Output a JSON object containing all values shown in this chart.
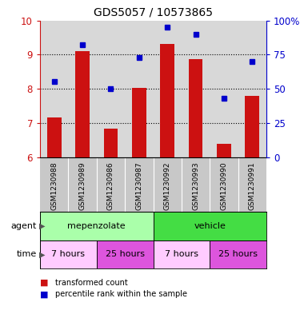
{
  "title": "GDS5057 / 10573865",
  "samples": [
    "GSM1230988",
    "GSM1230989",
    "GSM1230986",
    "GSM1230987",
    "GSM1230992",
    "GSM1230993",
    "GSM1230990",
    "GSM1230991"
  ],
  "bar_values": [
    7.15,
    9.1,
    6.83,
    8.03,
    9.32,
    8.87,
    6.38,
    7.78
  ],
  "dot_values": [
    55,
    82,
    50,
    73,
    95,
    90,
    43,
    70
  ],
  "ylim_left": [
    6,
    10
  ],
  "ylim_right": [
    0,
    100
  ],
  "yticks_left": [
    6,
    7,
    8,
    9,
    10
  ],
  "yticks_right": [
    0,
    25,
    50,
    75,
    100
  ],
  "ytick_labels_right": [
    "0",
    "25",
    "50",
    "75",
    "100%"
  ],
  "bar_color": "#cc1111",
  "dot_color": "#0000cc",
  "bar_baseline": 6,
  "agent_groups": [
    {
      "label": "mepenzolate",
      "start": 0,
      "end": 4,
      "color": "#aaffaa"
    },
    {
      "label": "vehicle",
      "start": 4,
      "end": 8,
      "color": "#44dd44"
    }
  ],
  "time_groups": [
    {
      "label": "7 hours",
      "start": 0,
      "end": 2,
      "color": "#ffccff"
    },
    {
      "label": "25 hours",
      "start": 2,
      "end": 4,
      "color": "#dd55dd"
    },
    {
      "label": "7 hours",
      "start": 4,
      "end": 6,
      "color": "#ffccff"
    },
    {
      "label": "25 hours",
      "start": 6,
      "end": 8,
      "color": "#dd55dd"
    }
  ],
  "legend_items": [
    {
      "label": "transformed count",
      "color": "#cc1111"
    },
    {
      "label": "percentile rank within the sample",
      "color": "#0000cc"
    }
  ],
  "xlabel_agent": "agent",
  "xlabel_time": "time",
  "plot_bg_color": "#d8d8d8",
  "left_axis_color": "#cc1111",
  "right_axis_color": "#0000cc",
  "gsm_bg_color": "#c8c8c8"
}
